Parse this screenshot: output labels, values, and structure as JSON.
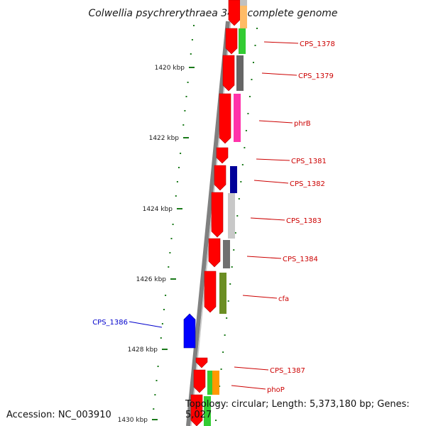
{
  "title": "Colwellia psychrerythraea 34H, complete genome",
  "accession_text": "Accession: NC_003910",
  "topology_text": "Topology: circular; Length: 5,373,180 bp; Genes: 5,027",
  "colors": {
    "backbone": "#808080",
    "cds_forward": "#ff0000",
    "cds_reverse": "#0000ff",
    "tick": "#1a7a1a",
    "label_forward": "#cc0000",
    "label_reverse": "#0000cc"
  },
  "ticks": [
    {
      "label": "1420 kbp"
    },
    {
      "label": "1422 kbp"
    },
    {
      "label": "1424 kbp"
    },
    {
      "label": "1426 kbp"
    },
    {
      "label": "1428 kbp"
    },
    {
      "label": "1430 kbp"
    }
  ],
  "gene_labels": [
    {
      "label": "CPS_1378",
      "strand": "forward"
    },
    {
      "label": "CPS_1379",
      "strand": "forward"
    },
    {
      "label": "phrB",
      "strand": "forward"
    },
    {
      "label": "CPS_1381",
      "strand": "forward"
    },
    {
      "label": "CPS_1382",
      "strand": "forward"
    },
    {
      "label": "CPS_1383",
      "strand": "forward"
    },
    {
      "label": "CPS_1384",
      "strand": "forward"
    },
    {
      "label": "cfa",
      "strand": "forward"
    },
    {
      "label": "CPS_1386",
      "strand": "reverse"
    },
    {
      "label": "CPS_1387",
      "strand": "forward"
    },
    {
      "label": "phoP",
      "strand": "forward"
    }
  ]
}
